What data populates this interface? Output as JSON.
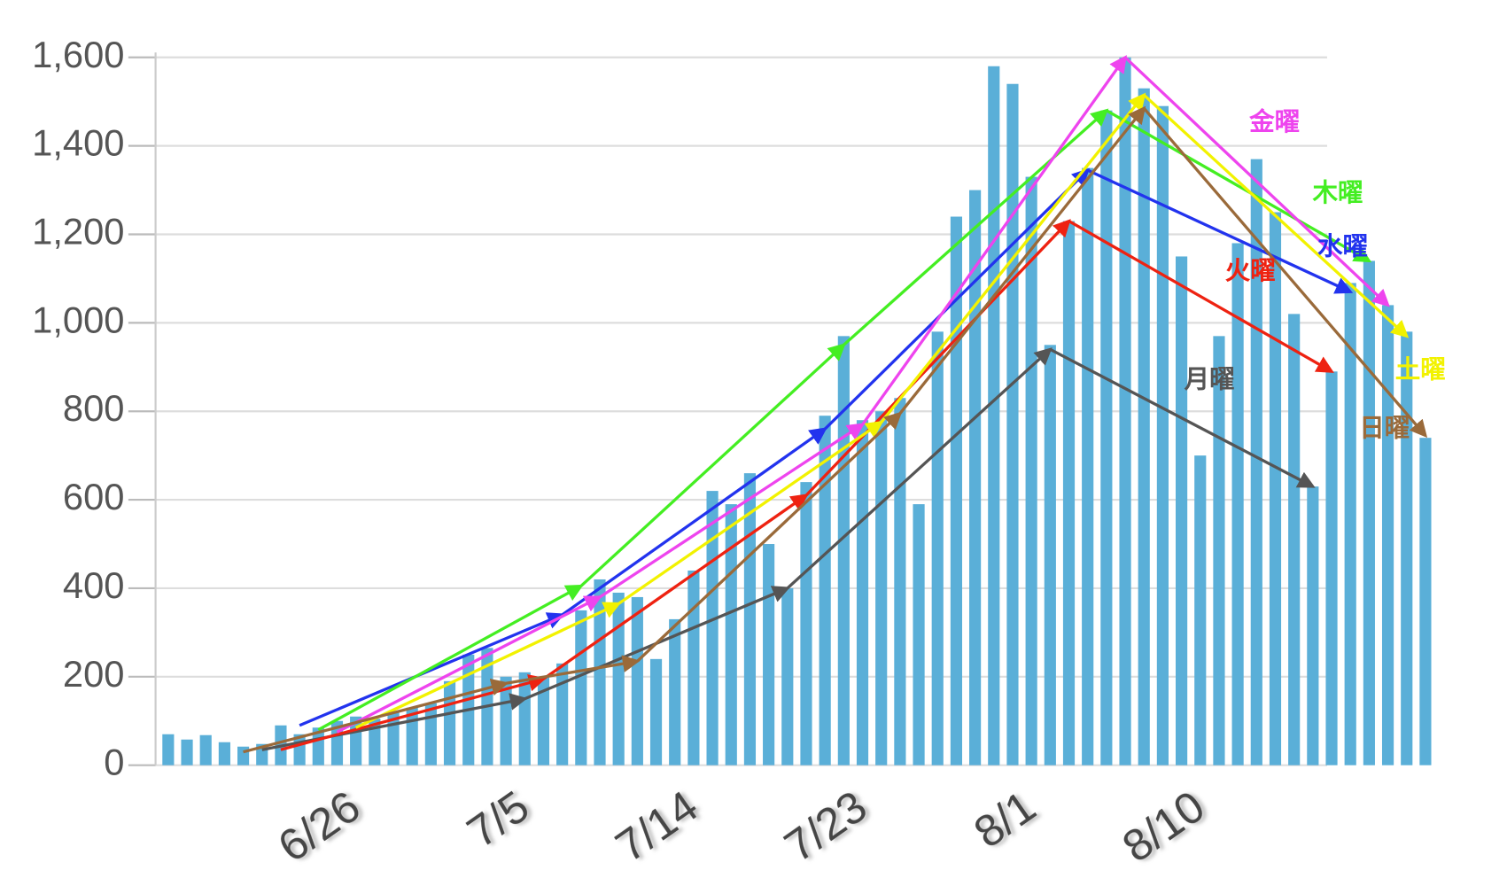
{
  "chart_data": {
    "type": "bar",
    "categories": [
      null,
      null,
      null,
      null,
      null,
      null,
      null,
      null,
      null,
      "6/26",
      null,
      null,
      null,
      null,
      null,
      null,
      null,
      null,
      "7/5",
      null,
      null,
      null,
      null,
      null,
      null,
      null,
      null,
      "7/14",
      null,
      null,
      null,
      null,
      null,
      null,
      null,
      null,
      "7/23",
      null,
      null,
      null,
      null,
      null,
      null,
      null,
      null,
      "8/1",
      null,
      null,
      null,
      null,
      null,
      null,
      null,
      null,
      "8/10",
      null,
      null,
      null,
      null,
      null,
      null,
      null,
      null,
      null,
      null,
      null,
      null,
      null
    ],
    "values": [
      70,
      58,
      68,
      52,
      42,
      48,
      90,
      70,
      85,
      100,
      110,
      105,
      120,
      130,
      140,
      190,
      250,
      265,
      200,
      210,
      200,
      230,
      350,
      420,
      390,
      380,
      240,
      330,
      440,
      620,
      590,
      660,
      500,
      400,
      640,
      790,
      970,
      780,
      800,
      830,
      590,
      980,
      1240,
      1300,
      1580,
      1540,
      1330,
      950,
      1230,
      1350,
      1480,
      1600,
      1530,
      1490,
      1150,
      700,
      970,
      1180,
      1370,
      1250,
      1020,
      630,
      890,
      1090,
      1140,
      1040,
      980,
      740
    ],
    "color": "#5aafd8",
    "ylim": [
      0,
      1600
    ],
    "yticks": [
      0,
      200,
      400,
      600,
      800,
      {
        "value": 1000,
        "label": "1,000"
      },
      {
        "value": 1200,
        "label": "1,200"
      },
      {
        "value": 1400,
        "label": "1,400"
      },
      {
        "value": 1600,
        "label": "1,600"
      }
    ],
    "grid": true,
    "series": [
      {
        "name": "月曜",
        "color": "#555555",
        "values": [
          null,
          null,
          null,
          null,
          null,
          35,
          null,
          null,
          null,
          null,
          null,
          null,
          null,
          null,
          null,
          null,
          null,
          null,
          null,
          150,
          null,
          null,
          null,
          null,
          null,
          null,
          null,
          null,
          null,
          null,
          null,
          null,
          null,
          400,
          null,
          null,
          null,
          null,
          null,
          null,
          null,
          null,
          null,
          null,
          null,
          null,
          null,
          940,
          null,
          null,
          null,
          null,
          null,
          null,
          null,
          null,
          null,
          null,
          null,
          null,
          null,
          630,
          null,
          null,
          null,
          null,
          null,
          null
        ]
      },
      {
        "name": "火曜",
        "color": "#ee2211",
        "values": [
          null,
          null,
          null,
          null,
          null,
          null,
          35,
          null,
          null,
          null,
          null,
          null,
          null,
          null,
          null,
          null,
          null,
          null,
          null,
          null,
          195,
          null,
          null,
          null,
          null,
          null,
          null,
          null,
          null,
          null,
          null,
          null,
          null,
          null,
          610,
          null,
          null,
          null,
          null,
          null,
          null,
          null,
          null,
          null,
          null,
          null,
          null,
          null,
          1230,
          null,
          null,
          null,
          null,
          null,
          null,
          null,
          null,
          null,
          null,
          null,
          null,
          null,
          890,
          null,
          null,
          null,
          null,
          null
        ]
      },
      {
        "name": "水曜",
        "color": "#2233ee",
        "values": [
          null,
          null,
          null,
          null,
          null,
          null,
          null,
          90,
          null,
          null,
          null,
          null,
          null,
          null,
          null,
          null,
          null,
          null,
          null,
          null,
          null,
          340,
          null,
          null,
          null,
          null,
          null,
          null,
          null,
          null,
          null,
          null,
          null,
          null,
          null,
          760,
          null,
          null,
          null,
          null,
          null,
          null,
          null,
          null,
          null,
          null,
          null,
          null,
          null,
          1345,
          null,
          null,
          null,
          null,
          null,
          null,
          null,
          null,
          null,
          null,
          null,
          null,
          null,
          1070,
          null,
          null,
          null,
          null
        ]
      },
      {
        "name": "木曜",
        "color": "#44ee22",
        "values": [
          null,
          null,
          null,
          null,
          null,
          null,
          null,
          null,
          80,
          null,
          null,
          null,
          null,
          null,
          null,
          null,
          null,
          null,
          null,
          null,
          null,
          null,
          405,
          null,
          null,
          null,
          null,
          null,
          null,
          null,
          null,
          null,
          null,
          null,
          null,
          null,
          950,
          null,
          null,
          null,
          null,
          null,
          null,
          null,
          null,
          null,
          null,
          null,
          null,
          null,
          1480,
          null,
          null,
          null,
          null,
          null,
          null,
          null,
          null,
          null,
          null,
          null,
          null,
          null,
          1140,
          null,
          null,
          null
        ]
      },
      {
        "name": "金曜",
        "color": "#ee44ee",
        "values": [
          null,
          null,
          null,
          null,
          null,
          null,
          null,
          null,
          null,
          75,
          null,
          null,
          null,
          null,
          null,
          null,
          null,
          null,
          null,
          null,
          null,
          null,
          null,
          380,
          null,
          null,
          null,
          null,
          null,
          null,
          null,
          null,
          null,
          null,
          null,
          null,
          null,
          770,
          null,
          null,
          null,
          null,
          null,
          null,
          null,
          null,
          null,
          null,
          null,
          null,
          null,
          1600,
          null,
          null,
          null,
          null,
          null,
          null,
          null,
          null,
          null,
          null,
          null,
          null,
          null,
          1040,
          null,
          null
        ]
      },
      {
        "name": "土曜",
        "color": "#f2f200",
        "values": [
          null,
          null,
          null,
          null,
          null,
          null,
          null,
          null,
          null,
          null,
          85,
          null,
          null,
          null,
          null,
          null,
          null,
          null,
          null,
          null,
          null,
          null,
          null,
          null,
          365,
          null,
          null,
          null,
          null,
          null,
          null,
          null,
          null,
          null,
          null,
          null,
          null,
          null,
          775,
          null,
          null,
          null,
          null,
          null,
          null,
          null,
          null,
          null,
          null,
          null,
          null,
          null,
          1515,
          null,
          null,
          null,
          null,
          null,
          null,
          null,
          null,
          null,
          null,
          null,
          null,
          null,
          970,
          null
        ]
      },
      {
        "name": "日曜",
        "color": "#9a6a3a",
        "values": [
          null,
          null,
          null,
          null,
          30,
          null,
          null,
          null,
          null,
          null,
          null,
          null,
          null,
          null,
          null,
          null,
          null,
          null,
          185,
          null,
          null,
          null,
          null,
          null,
          null,
          235,
          null,
          null,
          null,
          null,
          null,
          null,
          null,
          null,
          null,
          null,
          null,
          null,
          null,
          795,
          null,
          null,
          null,
          null,
          null,
          null,
          null,
          null,
          null,
          null,
          null,
          null,
          1485,
          null,
          null,
          null,
          null,
          null,
          null,
          null,
          null,
          null,
          null,
          null,
          null,
          null,
          null,
          745
        ]
      }
    ]
  }
}
